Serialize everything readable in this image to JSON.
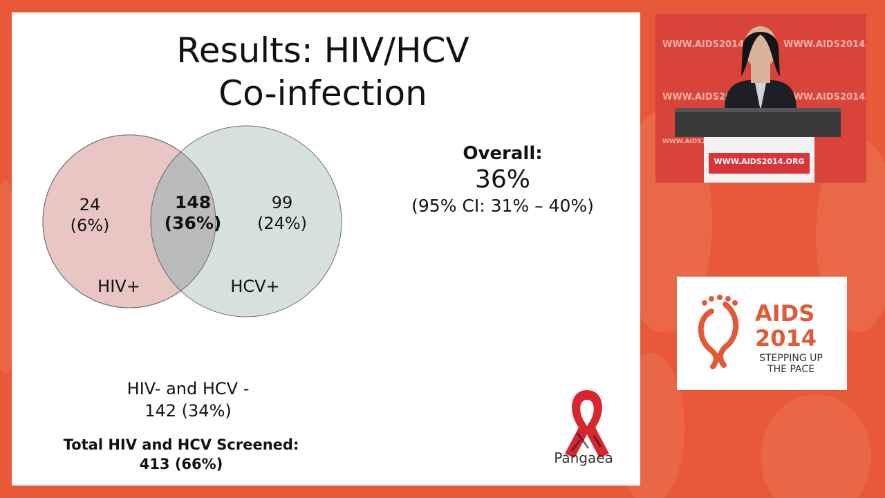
{
  "slide": {
    "title_line1": "Results: HIV/HCV",
    "title_line2": "Co-infection",
    "venn": {
      "left": {
        "count": "24",
        "percent": "(6%)",
        "label": "HIV+",
        "color": "#e9c6c3"
      },
      "overlap": {
        "count": "148",
        "percent": "(36%)",
        "color": "#b9bcbb"
      },
      "right": {
        "count": "99",
        "percent": "(24%)",
        "label": "HCV+",
        "color": "#d6e1df"
      }
    },
    "overall": {
      "label": "Overall:",
      "value": "36%",
      "ci": "(95% CI: 31% – 40%)"
    },
    "negative": {
      "label": "HIV- and HCV -",
      "value": "142 (34%)"
    },
    "total": {
      "label": "Total HIV and HCV Screened:",
      "value": "413 (66%)"
    },
    "sponsor_logo": "Pangaea"
  },
  "video": {
    "banner_text": "WWW.AIDS2014.ORG",
    "podium_sign": "WWW.AIDS2014.ORG"
  },
  "conference_logo": {
    "line1": "AIDS",
    "line2": "2014",
    "tagline1": "STEPPING UP",
    "tagline2": "THE PACE"
  },
  "colors": {
    "background": "#e8593a",
    "accent": "#e05a3a",
    "ribbon": "#d8262e"
  }
}
